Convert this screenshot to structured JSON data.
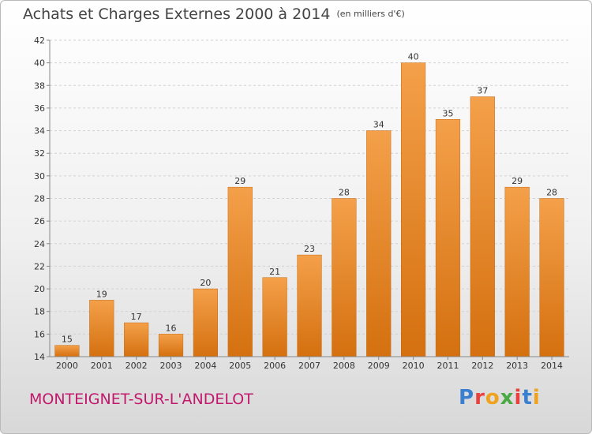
{
  "chart_data": {
    "type": "bar",
    "title": "Achats et Charges Externes 2000 à 2014",
    "subtitle": "(en milliers d'€)",
    "categories": [
      "2000",
      "2001",
      "2002",
      "2003",
      "2004",
      "2005",
      "2006",
      "2007",
      "2008",
      "2009",
      "2010",
      "2011",
      "2012",
      "2013",
      "2014"
    ],
    "values": [
      15,
      19,
      17,
      16,
      20,
      29,
      21,
      23,
      28,
      34,
      40,
      35,
      37,
      29,
      28
    ],
    "ylim": [
      14,
      42
    ],
    "yticks": [
      14,
      16,
      18,
      20,
      22,
      24,
      26,
      28,
      30,
      32,
      34,
      36,
      38,
      40,
      42
    ],
    "grid": true,
    "bar_color": "#f4a04a",
    "xlabel": "",
    "ylabel": ""
  },
  "footer": {
    "commune": "MONTEIGNET-SUR-L'ANDELOT",
    "logo": [
      "P",
      "r",
      "o",
      "x",
      "i",
      "t",
      "i"
    ],
    "logo_colors": [
      "#3b7fd1",
      "#e8413e",
      "#f0a21c",
      "#49a942",
      "#e8413e",
      "#3b7fd1",
      "#f0a21c"
    ]
  }
}
